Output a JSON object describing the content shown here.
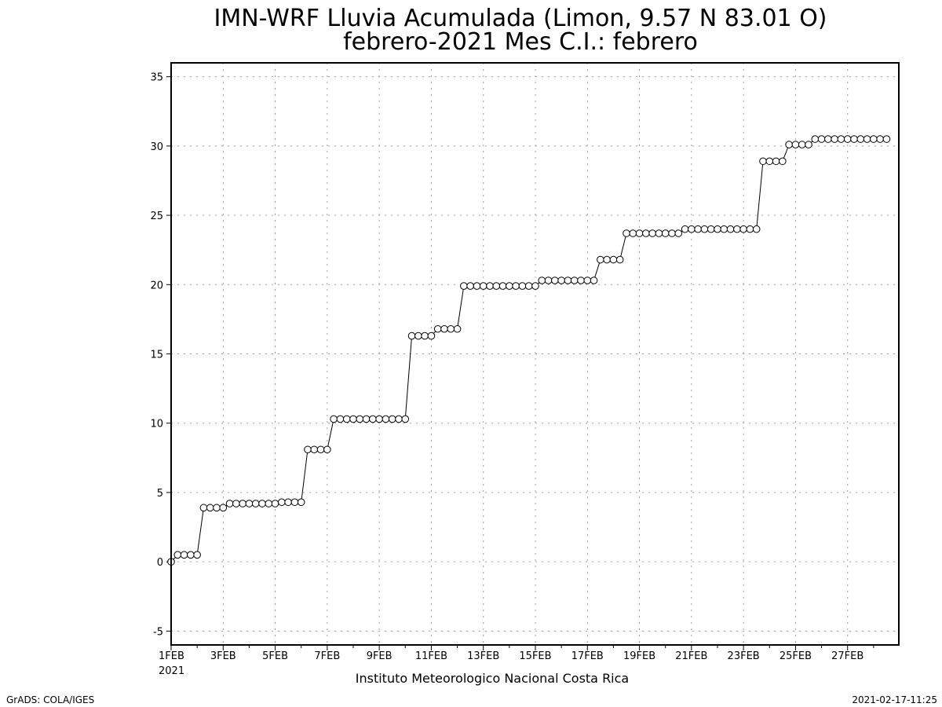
{
  "chart_data": {
    "type": "line",
    "title": "IMN-WRF  Lluvia Acumulada (Limon, 9.57  N 83.01  O)",
    "subtitle": "febrero-2021 Mes C.I.: febrero",
    "xlabel": "Instituto Meteorologico Nacional Costa Rica",
    "ylabel": "",
    "ylim": [
      -6,
      36
    ],
    "xlim": [
      0,
      27.97
    ],
    "x_unit": "days since 1FEB2021 00Z",
    "grid": true,
    "marker": "open-circle",
    "line_color": "#000000",
    "y_ticks": [
      "-5",
      "0",
      "5",
      "10",
      "15",
      "20",
      "25",
      "30",
      "35"
    ],
    "y_tick_values": [
      -5,
      0,
      5,
      10,
      15,
      20,
      25,
      30,
      35
    ],
    "x_ticks": [
      "1FEB",
      "3FEB",
      "5FEB",
      "7FEB",
      "9FEB",
      "11FEB",
      "13FEB",
      "15FEB",
      "17FEB",
      "19FEB",
      "21FEB",
      "23FEB",
      "25FEB",
      "27FEB"
    ],
    "x_tick_values": [
      0,
      2,
      4,
      6,
      8,
      10,
      12,
      14,
      16,
      18,
      20,
      22,
      24,
      26
    ],
    "x_year_label": "2021",
    "step": 0.25,
    "series": [
      {
        "values": [
          0.0,
          0.5,
          0.5,
          0.5,
          0.5,
          3.9,
          3.9,
          3.9,
          3.9,
          4.2,
          4.2,
          4.2,
          4.2,
          4.2,
          4.2,
          4.2,
          4.2,
          4.3,
          4.3,
          4.3,
          4.3,
          8.1,
          8.1,
          8.1,
          8.1,
          10.3,
          10.3,
          10.3,
          10.3,
          10.3,
          10.3,
          10.3,
          10.3,
          10.3,
          10.3,
          10.3,
          10.3,
          16.3,
          16.3,
          16.3,
          16.3,
          16.8,
          16.8,
          16.8,
          16.8,
          19.9,
          19.9,
          19.9,
          19.9,
          19.9,
          19.9,
          19.9,
          19.9,
          19.9,
          19.9,
          19.9,
          19.9,
          20.3,
          20.3,
          20.3,
          20.3,
          20.3,
          20.3,
          20.3,
          20.3,
          20.3,
          21.8,
          21.8,
          21.8,
          21.8,
          23.7,
          23.7,
          23.7,
          23.7,
          23.7,
          23.7,
          23.7,
          23.7,
          23.7,
          24.0,
          24.0,
          24.0,
          24.0,
          24.0,
          24.0,
          24.0,
          24.0,
          24.0,
          24.0,
          24.0,
          24.0,
          28.9,
          28.9,
          28.9,
          28.9,
          30.1,
          30.1,
          30.1,
          30.1,
          30.5,
          30.5,
          30.5,
          30.5,
          30.5,
          30.5,
          30.5,
          30.5,
          30.5,
          30.5,
          30.5,
          30.5
        ]
      }
    ]
  },
  "footer": {
    "left": "GrADS: COLA/IGES",
    "right": "2021-02-17-11:25"
  }
}
